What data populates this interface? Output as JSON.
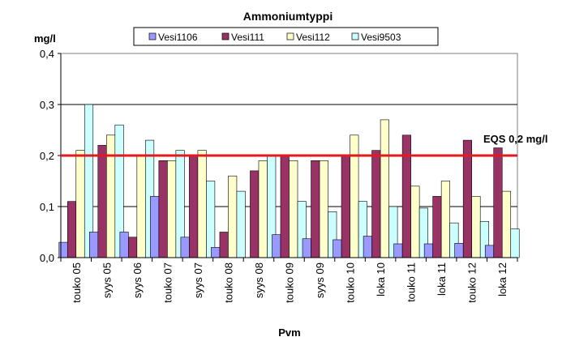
{
  "chart_data": {
    "type": "bar",
    "title": "Ammoniumtyppi",
    "ylabel": "mg/l",
    "xlabel": "Pvm",
    "ylim": [
      0,
      0.4
    ],
    "yticks": [
      "0,0",
      "0,1",
      "0,2",
      "0,3",
      "0,4"
    ],
    "ytick_values": [
      0,
      0.1,
      0.2,
      0.3,
      0.4
    ],
    "grid": true,
    "legend_position": "top",
    "categories": [
      "touko 05",
      "syys 05",
      "syys 06",
      "touko 07",
      "syys 07",
      "touko 08",
      "syys 08",
      "touko 09",
      "syys 09",
      "touko 10",
      "loka 10",
      "touko 11",
      "loka 11",
      "touko 12",
      "loka 12"
    ],
    "series": [
      {
        "name": "Vesi1106",
        "color": "#9999ff",
        "values": [
          0.03,
          0.05,
          0.05,
          0.12,
          0.04,
          0.02,
          null,
          0.045,
          0.037,
          0.035,
          0.042,
          0.027,
          0.027,
          0.028,
          0.024
        ]
      },
      {
        "name": "Vesi111",
        "color": "#993366",
        "values": [
          0.11,
          0.22,
          0.04,
          0.19,
          0.2,
          0.05,
          0.17,
          0.2,
          0.19,
          0.2,
          0.21,
          0.24,
          0.12,
          0.23,
          0.215
        ]
      },
      {
        "name": "Vesi112",
        "color": "#ffffcc",
        "values": [
          0.21,
          0.24,
          0.2,
          0.19,
          0.21,
          0.16,
          0.19,
          0.19,
          0.19,
          0.24,
          0.27,
          0.14,
          0.15,
          0.12,
          0.13
        ]
      },
      {
        "name": "Vesi9503",
        "color": "#ccffff",
        "values": [
          0.3,
          0.26,
          0.23,
          0.21,
          0.15,
          0.13,
          0.2,
          0.11,
          0.09,
          0.11,
          0.1,
          0.097,
          0.068,
          0.071,
          0.056
        ]
      }
    ],
    "reference_line": {
      "label": "EQS 0,2 mg/l",
      "value": 0.2,
      "color": "#e31a1c"
    }
  }
}
